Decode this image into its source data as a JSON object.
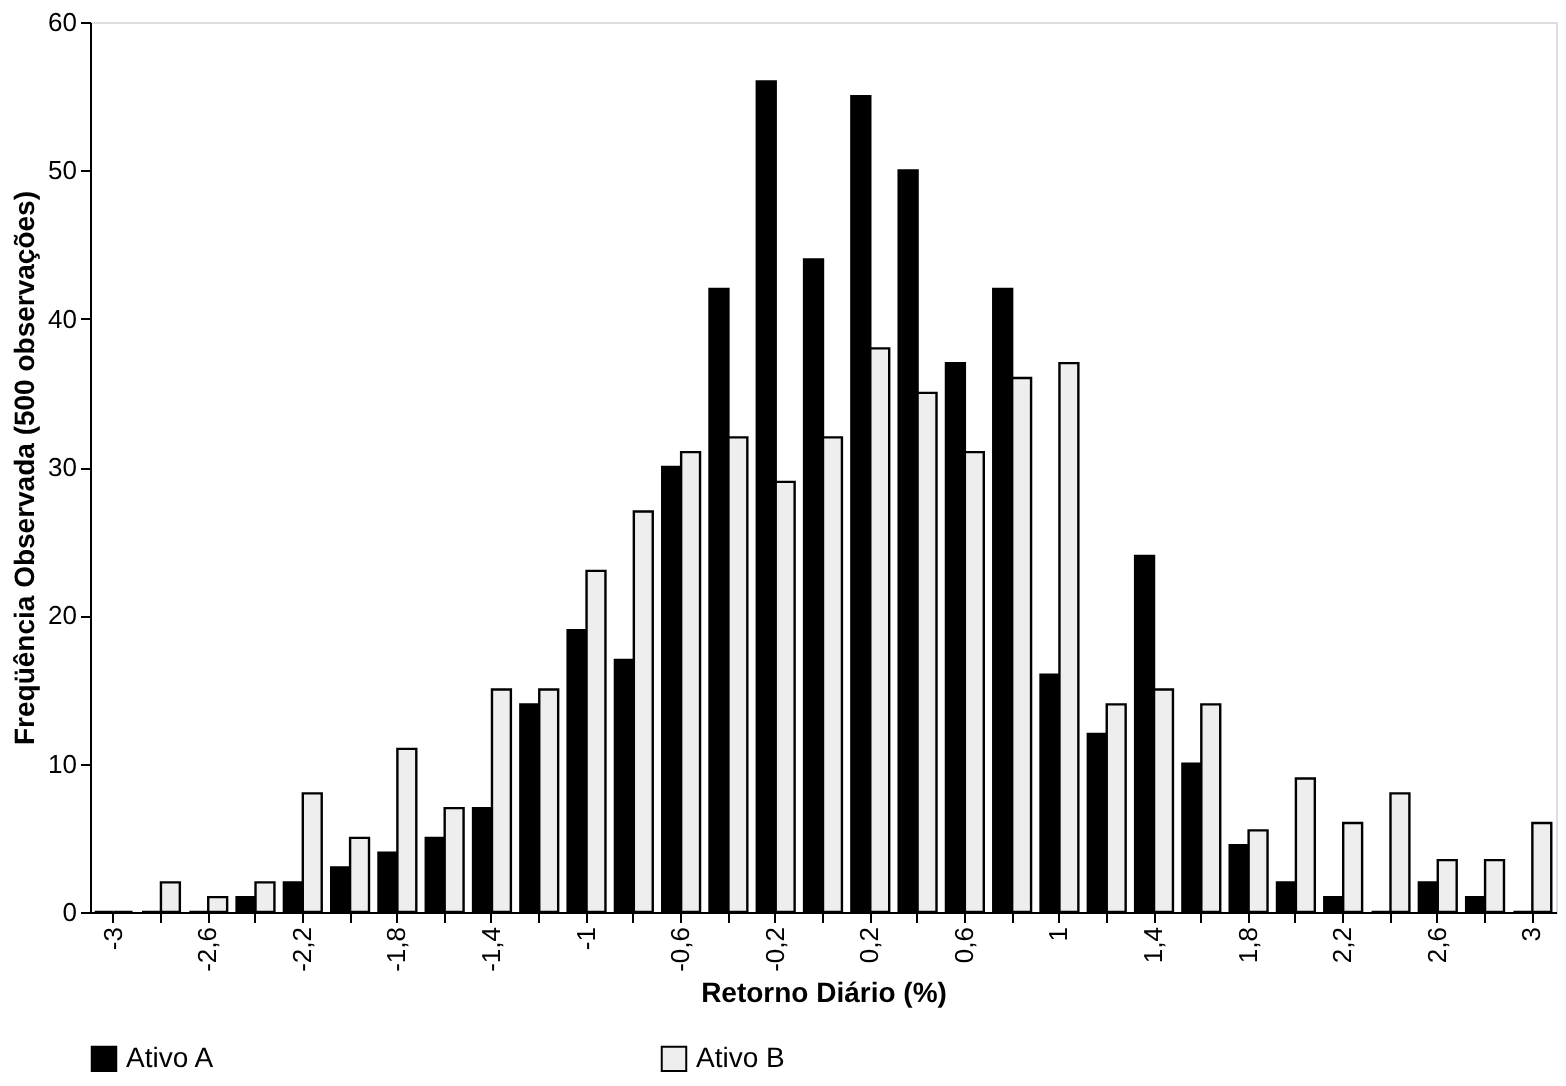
{
  "chart_data": {
    "type": "bar",
    "xlabel": "Retorno Diário (%)",
    "ylabel": "Freqüência Observada (500 observações)",
    "categories": [
      "-3",
      null,
      "-2,6",
      null,
      "-2,2",
      null,
      "-1,8",
      null,
      "-1,4",
      null,
      "-1",
      null,
      "-0,6",
      null,
      "-0,2",
      null,
      "0,2",
      null,
      "0,6",
      null,
      "1",
      null,
      "1,4",
      null,
      "1,8",
      null,
      "2,2",
      null,
      "2,6",
      null,
      "3"
    ],
    "series": [
      {
        "name": "Ativo A",
        "color": "#000000",
        "values": [
          0,
          0,
          0,
          1,
          2,
          3,
          4,
          5,
          7,
          14,
          19,
          17,
          30,
          42,
          56,
          44,
          55,
          50,
          37,
          42,
          16,
          12,
          24,
          10,
          4.5,
          2,
          1,
          0,
          2,
          1,
          0
        ]
      },
      {
        "name": "Ativo B",
        "color": "#eeeeee",
        "values": [
          0,
          2,
          1,
          2,
          8,
          5,
          11,
          7,
          15,
          15,
          23,
          27,
          31,
          32,
          29,
          32,
          38,
          35,
          31,
          36,
          37,
          14,
          15,
          14,
          5.5,
          9,
          6,
          8,
          3.5,
          3.5,
          6
        ]
      }
    ],
    "ylim": [
      0,
      60
    ],
    "yticks": [
      0,
      10,
      20,
      30,
      40,
      50,
      60
    ],
    "grid": false,
    "legend": "bottom"
  }
}
